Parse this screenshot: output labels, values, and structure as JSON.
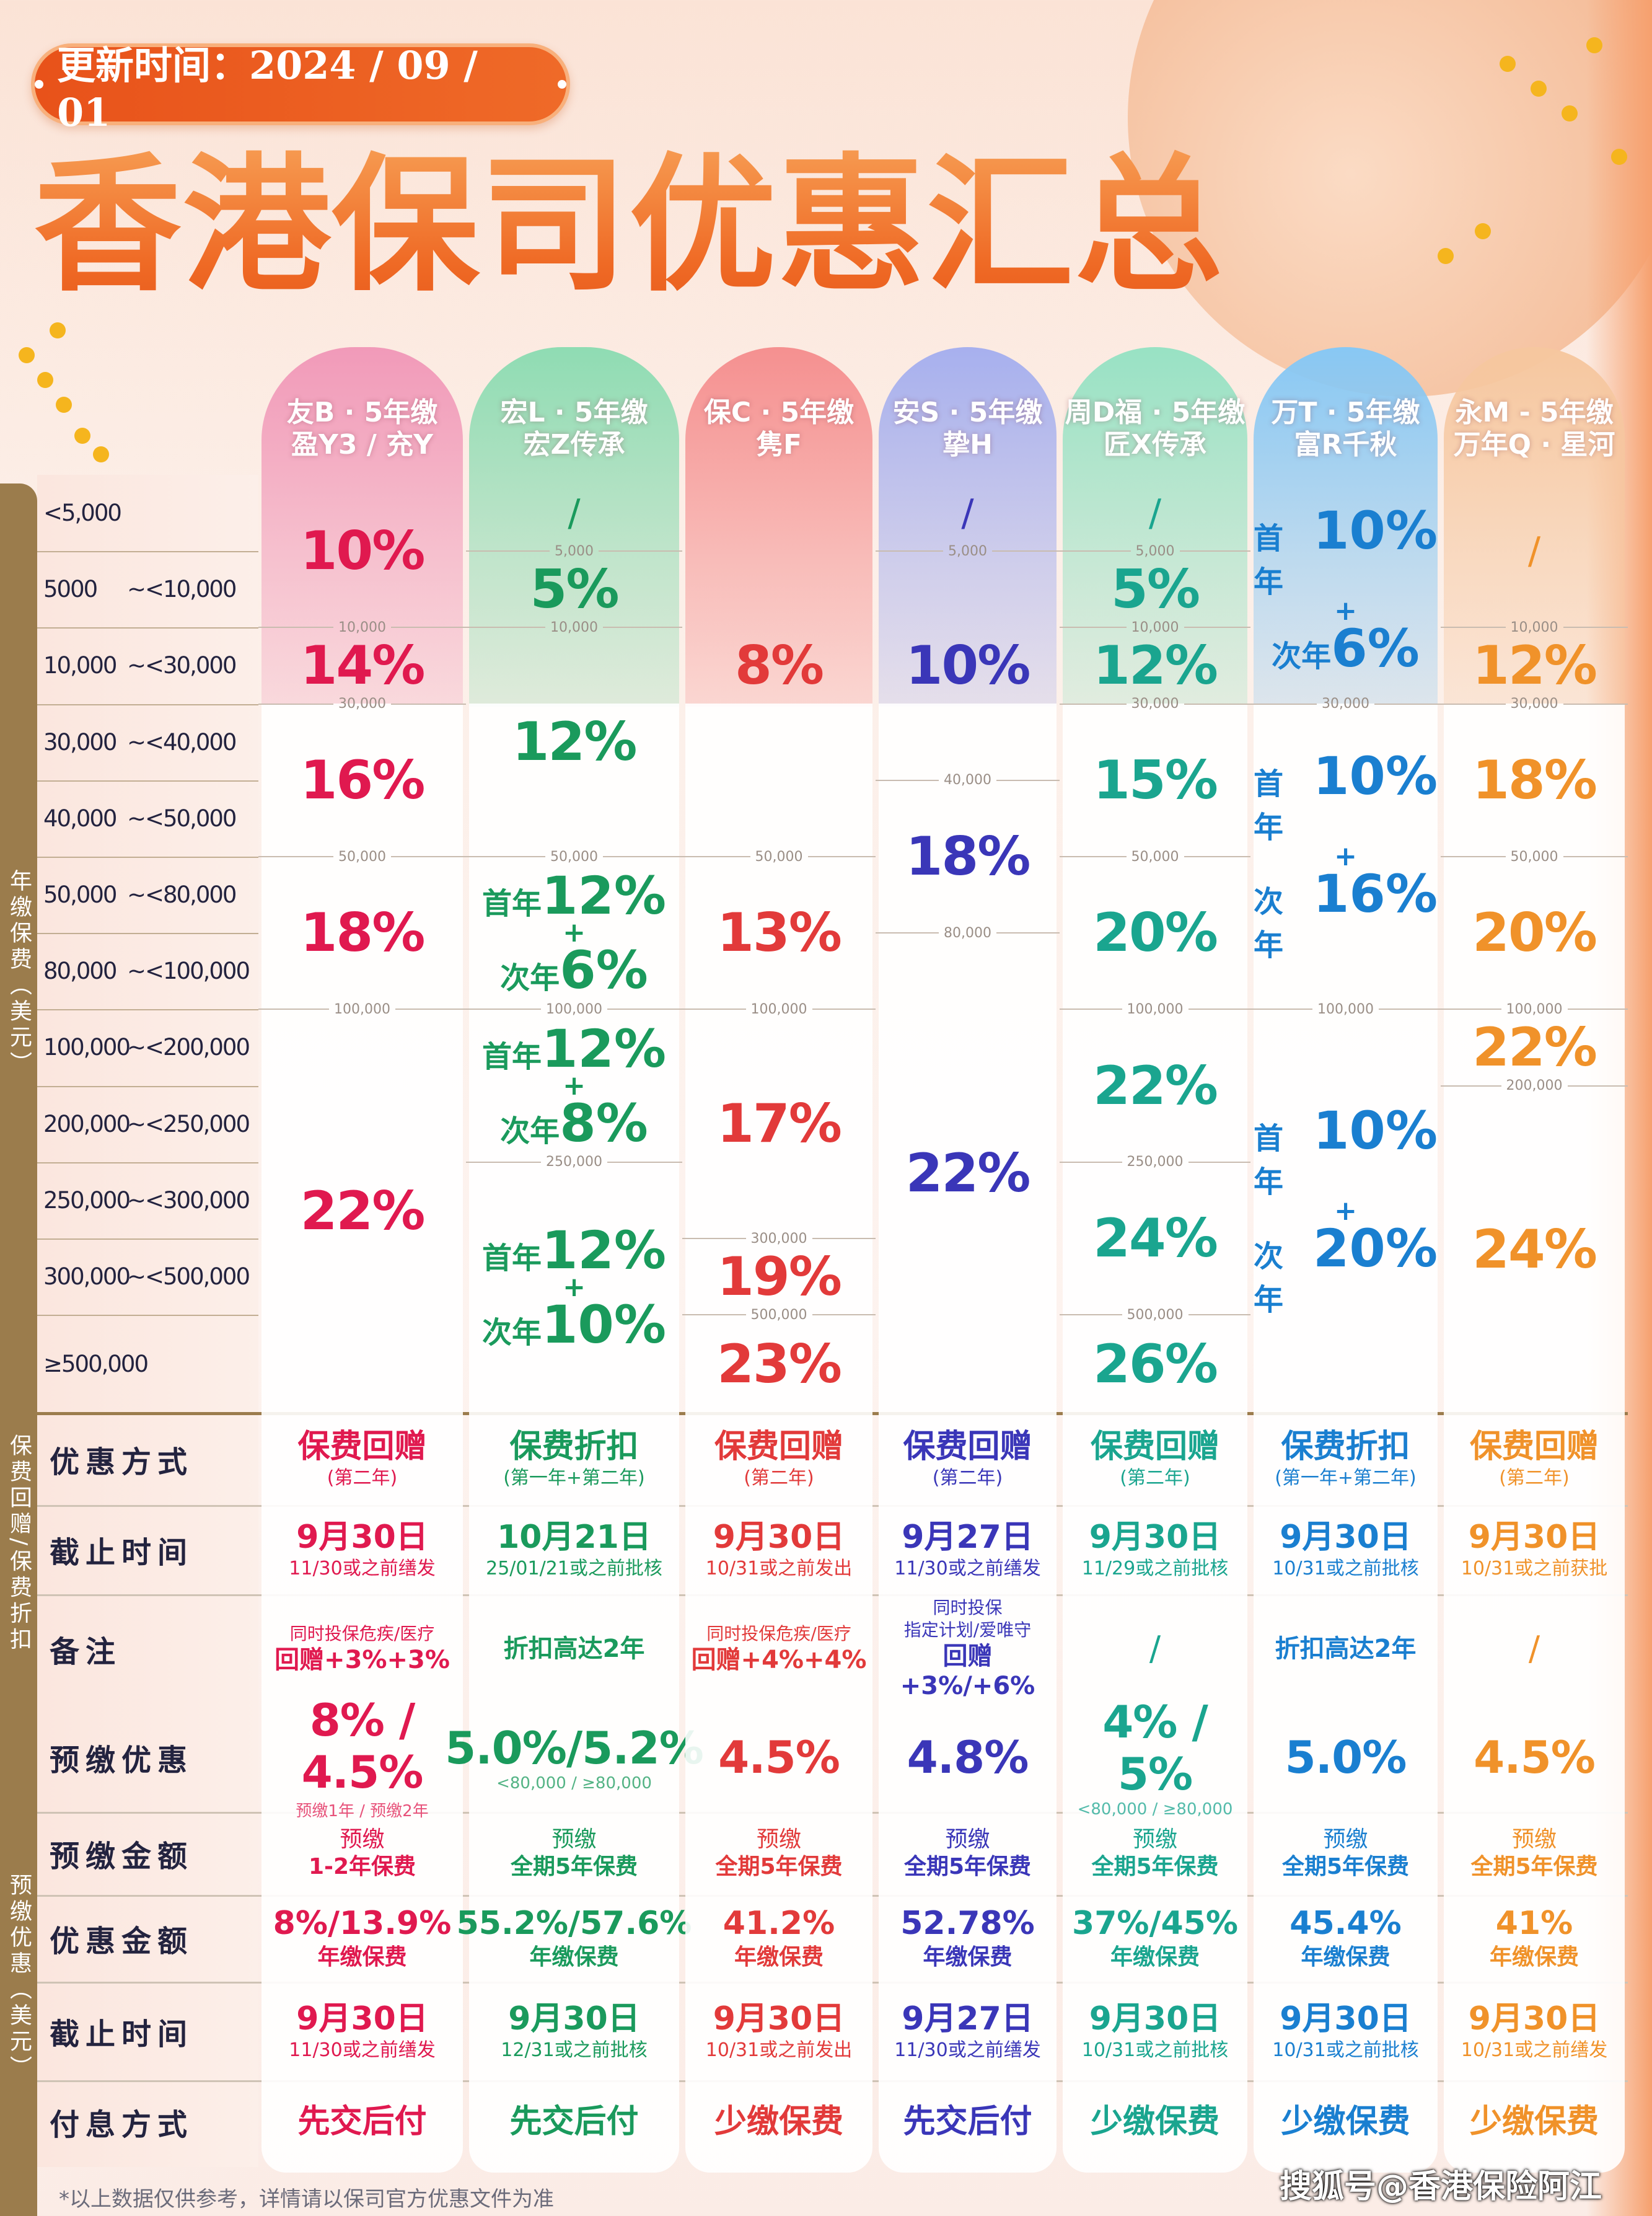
{
  "header": {
    "update_label": "更新时间：2024 / 09 / 01",
    "title": "香港保司优惠汇总"
  },
  "side_labels": {
    "annual": "年缴保费（美元）",
    "rebate": "保费回赠/保费折扣",
    "prepay": "预缴优惠（美元）"
  },
  "labels": {
    "first": "首年",
    "second": "次年",
    "plus": "+"
  },
  "tiers": [
    [
      "<5,000",
      ""
    ],
    [
      "5000",
      "~<10,000"
    ],
    [
      "10,000",
      "~<30,000"
    ],
    [
      "30,000",
      "~<40,000"
    ],
    [
      "40,000",
      "~<50,000"
    ],
    [
      "50,000",
      "~<80,000"
    ],
    [
      "80,000",
      "~<100,000"
    ],
    [
      "100,000",
      "~<200,000"
    ],
    [
      "200,000",
      "~<250,000"
    ],
    [
      "250,000",
      "~<300,000"
    ],
    [
      "300,000",
      "~<500,000"
    ],
    [
      "≥500,000",
      ""
    ]
  ],
  "row_labels": [
    "优惠方式",
    "截止时间",
    "备注",
    "预缴优惠",
    "预缴金额",
    "优惠金额",
    "截止时间",
    "付息方式"
  ],
  "companies": [
    {
      "name1": "友B · 5年缴",
      "name2": "盈Y3 / 充Y",
      "color": "#e0194f",
      "bg": "#f19ab9",
      "spans": [
        {
          "min": 0,
          "max": 10000,
          "rate": "10%"
        },
        {
          "min": 10000,
          "max": 30000,
          "rate": "14%"
        },
        {
          "min": 30000,
          "max": 50000,
          "rate": "16%"
        },
        {
          "min": 50000,
          "max": 100000,
          "rate": "18%"
        },
        {
          "min": 100000,
          "max": null,
          "rate": "22%"
        }
      ],
      "thresholds": [
        "10,000",
        "30,000",
        "50,000",
        "100,000"
      ],
      "offer_type": {
        "main": "保费回赠",
        "sub": "(第二年)"
      },
      "deadline": {
        "date": "9月30日",
        "note": "11/30或之前缮发"
      },
      "remark": [
        "同时投保危疾/医疗",
        "回赠+3%+3%"
      ],
      "prepay": {
        "rate": "8% / 4.5%",
        "sub": "预缴1年 / 预缴2年"
      },
      "prepay_amount": {
        "l1": "预缴",
        "l2": "1-2年保费"
      },
      "discount": {
        "value": "8%/13.9%",
        "unit": "年缴保费"
      },
      "deadline2": {
        "date": "9月30日",
        "note": "11/30或之前缮发"
      },
      "interest": "先交后付"
    },
    {
      "name1": "宏L · 5年缴",
      "name2": "宏Z传承",
      "color": "#1a9a5c",
      "bg": "#8fdcb3",
      "spans": [
        {
          "min": 0,
          "max": 5000,
          "rate": "/"
        },
        {
          "min": 5000,
          "max": 10000,
          "rate": "5%"
        },
        {
          "min": 10000,
          "max": 50000,
          "rate": "12%"
        },
        {
          "min": 50000,
          "max": 100000,
          "first": "12%",
          "second": "6%"
        },
        {
          "min": 100000,
          "max": 250000,
          "first": "12%",
          "second": "8%"
        },
        {
          "min": 250000,
          "max": null,
          "first": "12%",
          "second": "10%"
        }
      ],
      "thresholds": [
        "5,000",
        "10,000",
        "50,000",
        "100,000",
        "250,000"
      ],
      "offer_type": {
        "main": "保费折扣",
        "sub": "(第一年+第二年)"
      },
      "deadline": {
        "date": "10月21日",
        "note": "25/01/21或之前批核"
      },
      "remark": [
        "折扣高达2年"
      ],
      "prepay": {
        "rate": "5.0%/5.2%",
        "sub": "<80,000 / ≥80,000"
      },
      "prepay_amount": {
        "l1": "预缴",
        "l2": "全期5年保费"
      },
      "discount": {
        "value": "55.2%/57.6%",
        "unit": "年缴保费"
      },
      "deadline2": {
        "date": "9月30日",
        "note": "12/31或之前批核"
      },
      "interest": "先交后付"
    },
    {
      "name1": "保C · 5年缴",
      "name2": "隽F",
      "color": "#e23a3a",
      "bg": "#f59090",
      "spans": [
        {
          "min": 0,
          "max": 50000,
          "rate": "8%"
        },
        {
          "min": 50000,
          "max": 100000,
          "rate": "13%"
        },
        {
          "min": 100000,
          "max": 300000,
          "rate": "17%"
        },
        {
          "min": 300000,
          "max": 500000,
          "rate": "19%"
        },
        {
          "min": 500000,
          "max": null,
          "rate": "23%"
        }
      ],
      "thresholds": [
        "50,000",
        "100,000",
        "300,000",
        "500,000"
      ],
      "offer_type": {
        "main": "保费回赠",
        "sub": "(第二年)"
      },
      "deadline": {
        "date": "9月30日",
        "note": "10/31或之前发出"
      },
      "remark": [
        "同时投保危疾/医疗",
        "回赠+4%+4%"
      ],
      "prepay": {
        "rate": "4.5%",
        "sub": ""
      },
      "prepay_amount": {
        "l1": "预缴",
        "l2": "全期5年保费"
      },
      "discount": {
        "value": "41.2%",
        "unit": "年缴保费"
      },
      "deadline2": {
        "date": "9月30日",
        "note": "10/31或之前发出"
      },
      "interest": "少缴保费"
    },
    {
      "name1": "安S · 5年缴",
      "name2": "挚H",
      "color": "#3a36b8",
      "bg": "#a7b0ee",
      "spans": [
        {
          "min": 0,
          "max": 5000,
          "rate": "/"
        },
        {
          "min": 5000,
          "max": 40000,
          "rate": "10%"
        },
        {
          "min": 40000,
          "max": 80000,
          "rate": "18%"
        },
        {
          "min": 80000,
          "max": null,
          "rate": "22%"
        }
      ],
      "thresholds": [
        "5,000",
        "40,000",
        "80,000"
      ],
      "offer_type": {
        "main": "保费回赠",
        "sub": "(第二年)"
      },
      "deadline": {
        "date": "9月27日",
        "note": "11/30或之前缮发"
      },
      "remark": [
        "同时投保",
        "指定计划/爱唯守",
        "回赠+3%/+6%"
      ],
      "prepay": {
        "rate": "4.8%",
        "sub": ""
      },
      "prepay_amount": {
        "l1": "预缴",
        "l2": "全期5年保费"
      },
      "discount": {
        "value": "52.78%",
        "unit": "年缴保费"
      },
      "deadline2": {
        "date": "9月27日",
        "note": "11/30或之前缮发"
      },
      "interest": "先交后付"
    },
    {
      "name1": "周D福 · 5年缴",
      "name2": "匠X传承",
      "color": "#1aa58f",
      "bg": "#98e2c4",
      "spans": [
        {
          "min": 0,
          "max": 5000,
          "rate": "/"
        },
        {
          "min": 5000,
          "max": 10000,
          "rate": "5%"
        },
        {
          "min": 10000,
          "max": 30000,
          "rate": "12%"
        },
        {
          "min": 30000,
          "max": 50000,
          "rate": "15%"
        },
        {
          "min": 50000,
          "max": 100000,
          "rate": "20%"
        },
        {
          "min": 100000,
          "max": 250000,
          "rate": "22%"
        },
        {
          "min": 250000,
          "max": 500000,
          "rate": "24%"
        },
        {
          "min": 500000,
          "max": null,
          "rate": "26%"
        }
      ],
      "thresholds": [
        "5,000",
        "10,000",
        "30,000",
        "50,000",
        "100,000",
        "250,000",
        "500,000"
      ],
      "offer_type": {
        "main": "保费回赠",
        "sub": "(第二年)"
      },
      "deadline": {
        "date": "9月30日",
        "note": "11/29或之前批核"
      },
      "remark": [
        "/"
      ],
      "prepay": {
        "rate": "4% / 5%",
        "sub": "<80,000 / ≥80,000"
      },
      "prepay_amount": {
        "l1": "预缴",
        "l2": "全期5年保费"
      },
      "discount": {
        "value": "37%/45%",
        "unit": "年缴保费"
      },
      "deadline2": {
        "date": "9月30日",
        "note": "10/31或之前批核"
      },
      "interest": "少缴保费"
    },
    {
      "name1": "万T · 5年缴",
      "name2": "富R千秋",
      "color": "#1a7fd0",
      "bg": "#88c8f4",
      "spans": [
        {
          "min": 0,
          "max": 30000,
          "first": "10%",
          "second": "6%"
        },
        {
          "min": 30000,
          "max": 100000,
          "first": "10%",
          "second": "16%"
        },
        {
          "min": 100000,
          "max": null,
          "first": "10%",
          "second": "20%"
        }
      ],
      "thresholds": [
        "30,000",
        "100,000"
      ],
      "offer_type": {
        "main": "保费折扣",
        "sub": "(第一年+第二年)"
      },
      "deadline": {
        "date": "9月30日",
        "note": "10/31或之前批核"
      },
      "remark": [
        "折扣高达2年"
      ],
      "prepay": {
        "rate": "5.0%",
        "sub": ""
      },
      "prepay_amount": {
        "l1": "预缴",
        "l2": "全期5年保费"
      },
      "discount": {
        "value": "45.4%",
        "unit": "年缴保费"
      },
      "deadline2": {
        "date": "9月30日",
        "note": "10/31或之前批核"
      },
      "interest": "少缴保费"
    },
    {
      "name1": "永M - 5年缴",
      "name2": "万年Q · 星河",
      "color": "#f0922a",
      "bg": "#f6c79f",
      "spans": [
        {
          "min": 0,
          "max": 10000,
          "rate": "/"
        },
        {
          "min": 10000,
          "max": 30000,
          "rate": "12%"
        },
        {
          "min": 30000,
          "max": 50000,
          "rate": "18%"
        },
        {
          "min": 50000,
          "max": 100000,
          "rate": "20%"
        },
        {
          "min": 100000,
          "max": 200000,
          "rate": "22%"
        },
        {
          "min": 200000,
          "max": null,
          "rate": "24%"
        }
      ],
      "thresholds": [
        "10,000",
        "30,000",
        "50,000",
        "100,000",
        "200,000"
      ],
      "offer_type": {
        "main": "保费回赠",
        "sub": "(第二年)"
      },
      "deadline": {
        "date": "9月30日",
        "note": "10/31或之前获批"
      },
      "remark": [
        "/"
      ],
      "prepay": {
        "rate": "4.5%",
        "sub": ""
      },
      "prepay_amount": {
        "l1": "预缴",
        "l2": "全期5年保费"
      },
      "discount": {
        "value": "41%",
        "unit": "年缴保费"
      },
      "deadline2": {
        "date": "9月30日",
        "note": "10/31或之前缮发"
      },
      "interest": "少缴保费"
    }
  ],
  "footnote": "*以上数据仅供参考，详情请以保司官方优惠文件为准",
  "watermark": "搜狐号@香港保险阿江"
}
